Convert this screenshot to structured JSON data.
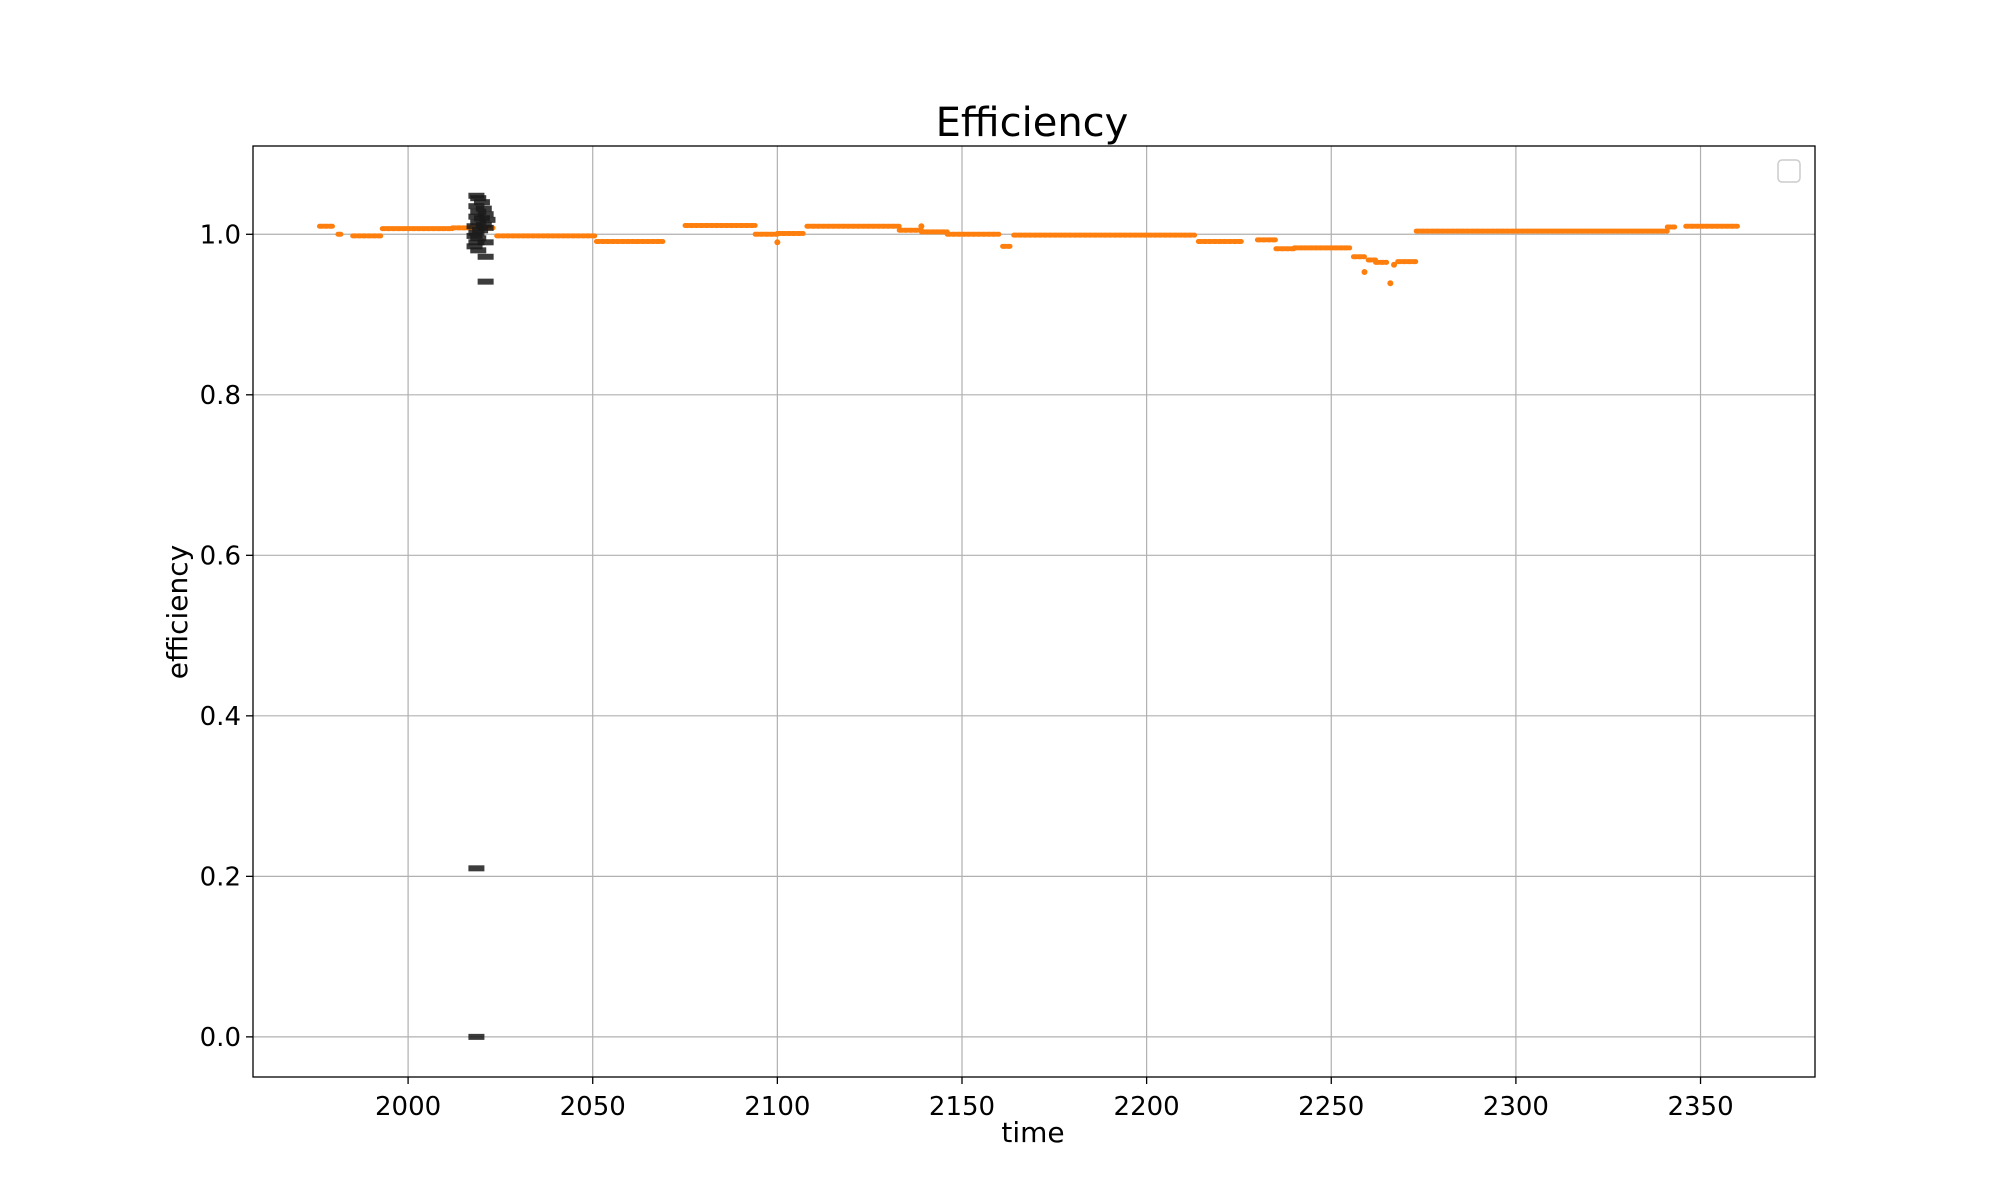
{
  "chart_data": {
    "type": "scatter",
    "title": "Efficiency",
    "xlabel": "time",
    "ylabel": "efficiency",
    "xlim": [
      1958,
      2381
    ],
    "ylim": [
      -0.05,
      1.11
    ],
    "x_ticks": [
      2000,
      2050,
      2100,
      2150,
      2200,
      2250,
      2300,
      2350
    ],
    "x_tick_labels": [
      "2000",
      "2050",
      "2100",
      "2150",
      "2200",
      "2250",
      "2300",
      "2350"
    ],
    "y_ticks": [
      0.0,
      0.2,
      0.4,
      0.6,
      0.8,
      1.0
    ],
    "y_tick_labels": [
      "0.0",
      "0.2",
      "0.4",
      "0.6",
      "0.8",
      "1.0"
    ],
    "grid": true,
    "legend": {
      "position": "top-right",
      "entries": []
    },
    "colors": {
      "orange_series": "#ff7f0e",
      "black_series": "#1a1a1a"
    },
    "series": [
      {
        "color": "#ff7f0e",
        "segments": [
          {
            "x_start": 1976,
            "x_end": 1980,
            "y": 1.01
          },
          {
            "x_start": 1981,
            "x_end": 1982,
            "y": 1.0
          },
          {
            "x_start": 1985,
            "x_end": 1993,
            "y": 0.998
          },
          {
            "x_start": 1993,
            "x_end": 2012,
            "y": 1.007
          },
          {
            "x_start": 2012,
            "x_end": 2023,
            "y": 1.008
          },
          {
            "x_start": 2024,
            "x_end": 2051,
            "y": 0.998
          },
          {
            "x_start": 2051,
            "x_end": 2069,
            "y": 0.991
          },
          {
            "x_start": 2075,
            "x_end": 2094,
            "y": 1.011
          },
          {
            "x_start": 2094,
            "x_end": 2100,
            "y": 1.0
          },
          {
            "x_start": 2100,
            "x_end": 2107,
            "y": 1.001
          },
          {
            "x_start": 2108,
            "x_end": 2133,
            "y": 1.01
          },
          {
            "x_start": 2133,
            "x_end": 2139,
            "y": 1.005
          },
          {
            "x_start": 2139,
            "x_end": 2146,
            "y": 1.003
          },
          {
            "x_start": 2146,
            "x_end": 2160,
            "y": 1.0
          },
          {
            "x_start": 2161,
            "x_end": 2163,
            "y": 0.985
          },
          {
            "x_start": 2164,
            "x_end": 2213,
            "y": 0.999
          },
          {
            "x_start": 2214,
            "x_end": 2226,
            "y": 0.991
          },
          {
            "x_start": 2230,
            "x_end": 2235,
            "y": 0.993
          },
          {
            "x_start": 2235,
            "x_end": 2240,
            "y": 0.982
          },
          {
            "x_start": 2240,
            "x_end": 2255,
            "y": 0.983
          },
          {
            "x_start": 2256,
            "x_end": 2259,
            "y": 0.972
          },
          {
            "x_start": 2260,
            "x_end": 2262,
            "y": 0.968
          },
          {
            "x_start": 2262,
            "x_end": 2265,
            "y": 0.965
          },
          {
            "x_start": 2268,
            "x_end": 2273,
            "y": 0.966
          },
          {
            "x_start": 2273,
            "x_end": 2341,
            "y": 1.004
          },
          {
            "x_start": 2341,
            "x_end": 2343,
            "y": 1.009
          },
          {
            "x_start": 2346,
            "x_end": 2360,
            "y": 1.01
          }
        ],
        "points": [
          {
            "x": 2100,
            "y": 0.99
          },
          {
            "x": 2139,
            "y": 1.01
          },
          {
            "x": 2259,
            "y": 0.953
          },
          {
            "x": 2266,
            "y": 0.939
          },
          {
            "x": 2267,
            "y": 0.962
          }
        ]
      },
      {
        "color": "#1a1a1a",
        "points": [
          {
            "x": 2018.5,
            "y": 1.048
          },
          {
            "x": 2019.0,
            "y": 1.045
          },
          {
            "x": 2020.0,
            "y": 1.04
          },
          {
            "x": 2018.5,
            "y": 1.035
          },
          {
            "x": 2020.5,
            "y": 1.032
          },
          {
            "x": 2019.0,
            "y": 1.028
          },
          {
            "x": 2021.0,
            "y": 1.025
          },
          {
            "x": 2018.5,
            "y": 1.022
          },
          {
            "x": 2020.0,
            "y": 1.02
          },
          {
            "x": 2021.5,
            "y": 1.018
          },
          {
            "x": 2019.0,
            "y": 1.015
          },
          {
            "x": 2020.5,
            "y": 1.012
          },
          {
            "x": 2018.0,
            "y": 1.01
          },
          {
            "x": 2021.0,
            "y": 1.008
          },
          {
            "x": 2019.5,
            "y": 1.005
          },
          {
            "x": 2018.5,
            "y": 1.002
          },
          {
            "x": 2018.0,
            "y": 0.998
          },
          {
            "x": 2019.0,
            "y": 0.995
          },
          {
            "x": 2018.5,
            "y": 0.99
          },
          {
            "x": 2018.0,
            "y": 0.985
          },
          {
            "x": 2019.0,
            "y": 0.98
          },
          {
            "x": 2021.0,
            "y": 0.99
          },
          {
            "x": 2021.0,
            "y": 0.972
          },
          {
            "x": 2021.0,
            "y": 0.941
          },
          {
            "x": 2018.5,
            "y": 0.21
          },
          {
            "x": 2018.5,
            "y": 0.0
          }
        ]
      }
    ]
  }
}
